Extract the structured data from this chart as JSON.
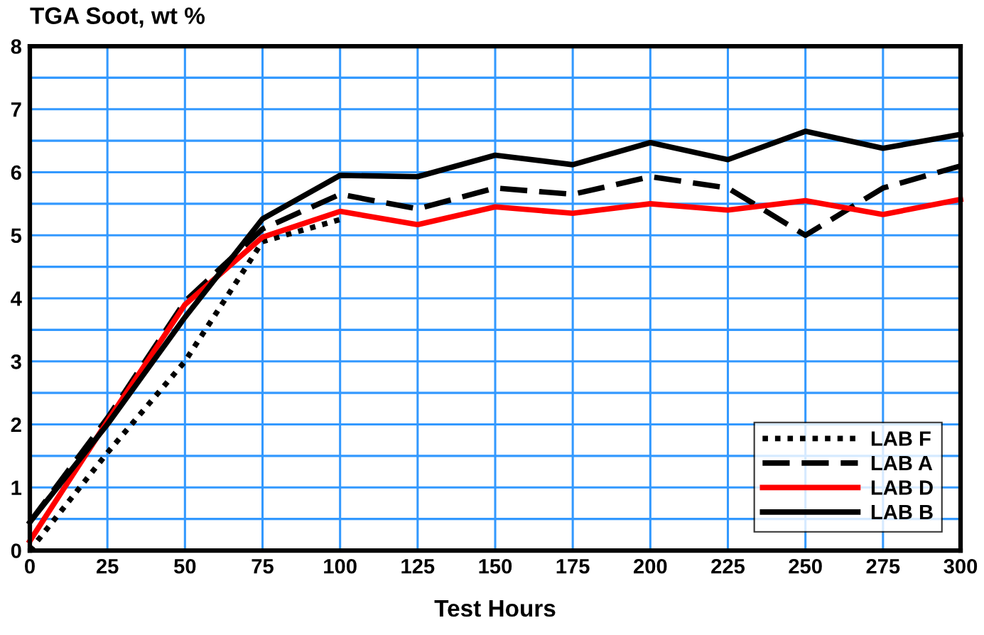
{
  "chart_data": {
    "type": "line",
    "ylabel": "TGA Soot, wt %",
    "xlabel": "Test Hours",
    "x": [
      0,
      25,
      50,
      75,
      100,
      125,
      150,
      175,
      200,
      225,
      250,
      275,
      300
    ],
    "series": [
      {
        "name": "LAB F",
        "color": "#000000",
        "line_style": "dotted",
        "values": [
          0,
          1.55,
          3.0,
          4.9,
          5.25,
          null,
          null,
          null,
          null,
          null,
          null,
          null,
          null
        ]
      },
      {
        "name": "LAB A",
        "color": "#000000",
        "line_style": "dashed",
        "values": [
          0.45,
          2.1,
          3.95,
          5.1,
          5.65,
          5.42,
          5.75,
          5.65,
          5.93,
          5.75,
          5.0,
          5.75,
          6.1
        ]
      },
      {
        "name": "LAB D",
        "color": "#ff0000",
        "line_style": "solid",
        "values": [
          0.15,
          2.05,
          3.9,
          4.97,
          5.38,
          5.17,
          5.45,
          5.35,
          5.5,
          5.4,
          5.55,
          5.33,
          5.57
        ]
      },
      {
        "name": "LAB B",
        "color": "#000000",
        "line_style": "solid",
        "values": [
          0.45,
          2.0,
          3.7,
          5.26,
          5.95,
          5.93,
          6.27,
          6.12,
          6.47,
          6.2,
          6.65,
          6.38,
          6.6
        ]
      }
    ],
    "xlim": [
      0,
      300
    ],
    "xticks": [
      0,
      25,
      50,
      75,
      100,
      125,
      150,
      175,
      200,
      225,
      250,
      275,
      300
    ],
    "ylim": [
      0,
      8
    ],
    "yticks": [
      0,
      {
        "value": 0.5,
        "label": null
      },
      1,
      {
        "value": 1.5,
        "label": null
      },
      2,
      {
        "value": 2.5,
        "label": null
      },
      3,
      {
        "value": 3.5,
        "label": null
      },
      4,
      {
        "value": 4.5,
        "label": null
      },
      5,
      {
        "value": 5.5,
        "label": null
      },
      6,
      {
        "value": 6.5,
        "label": null
      },
      7,
      {
        "value": 7.5,
        "label": null
      },
      8
    ],
    "grid": true,
    "legend": "bottom right",
    "marker": "none"
  }
}
